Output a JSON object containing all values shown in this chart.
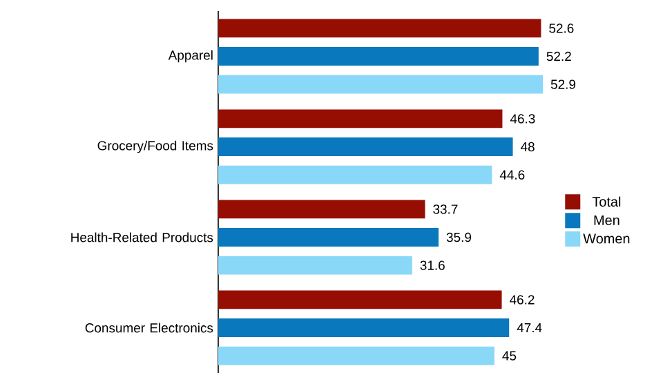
{
  "chart_data": {
    "type": "bar",
    "orientation": "horizontal",
    "categories": [
      "Apparel",
      "Grocery/Food Items",
      "Health-Related Products",
      "Consumer Electronics"
    ],
    "series": [
      {
        "name": "Total",
        "color": "#960e02",
        "values": [
          52.6,
          46.3,
          33.7,
          46.2
        ]
      },
      {
        "name": "Men",
        "color": "#0a78bd",
        "values": [
          52.2,
          48,
          35.9,
          47.4
        ]
      },
      {
        "name": "Women",
        "color": "#8ad8f8",
        "values": [
          52.9,
          44.6,
          31.6,
          45
        ]
      }
    ],
    "data_labels": true,
    "legend": "right"
  }
}
